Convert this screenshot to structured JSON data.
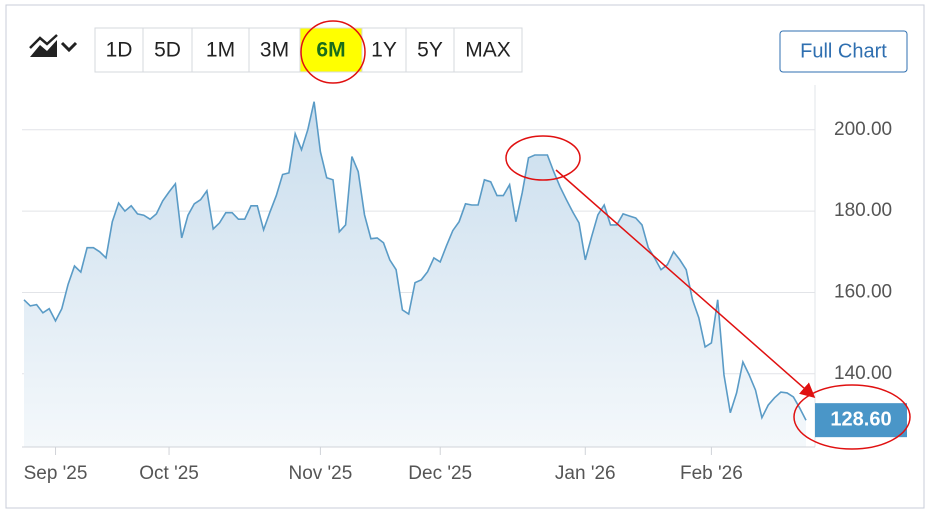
{
  "toolbar": {
    "ranges": [
      "1D",
      "5D",
      "1M",
      "3M",
      "6M",
      "1Y",
      "5Y",
      "MAX"
    ],
    "selected": 4,
    "full_chart": "Full Chart"
  },
  "chart_data": {
    "type": "line",
    "categories": [
      null,
      null,
      null,
      null,
      null,
      "Sep '25",
      null,
      null,
      null,
      null,
      null,
      null,
      null,
      null,
      null,
      null,
      null,
      null,
      null,
      null,
      null,
      null,
      null,
      "Oct '25",
      null,
      null,
      null,
      null,
      null,
      null,
      null,
      null,
      null,
      null,
      null,
      null,
      null,
      null,
      null,
      null,
      null,
      null,
      null,
      null,
      null,
      null,
      null,
      "Nov '25",
      null,
      null,
      null,
      null,
      null,
      null,
      null,
      null,
      null,
      null,
      null,
      null,
      null,
      null,
      null,
      null,
      null,
      null,
      "Dec '25",
      null,
      null,
      null,
      null,
      null,
      null,
      null,
      null,
      null,
      null,
      null,
      null,
      null,
      null,
      null,
      null,
      null,
      null,
      null,
      null,
      null,
      null,
      "Jan '26",
      null,
      null,
      null,
      null,
      null,
      null,
      null,
      null,
      null,
      null,
      null,
      null,
      null,
      null,
      null,
      null,
      null,
      null,
      null,
      "Feb '26",
      null,
      null,
      null,
      null,
      null,
      null,
      null,
      null,
      null,
      null,
      null,
      null,
      null,
      null,
      null
    ],
    "values": [
      158.2,
      156.7,
      157,
      155,
      156,
      153,
      156,
      162,
      166.5,
      165,
      171,
      171,
      170,
      168.5,
      177.4,
      182,
      180,
      181.3,
      179.3,
      179,
      178,
      179.3,
      182.5,
      184.7,
      186.7,
      173.4,
      179,
      181.8,
      182.8,
      185,
      175.6,
      177.1,
      179.6,
      179.6,
      178,
      178,
      181.3,
      181.3,
      175.4,
      179.8,
      183.8,
      189,
      189.4,
      199,
      195.1,
      200,
      206.9,
      194.6,
      188.2,
      187.7,
      174.9,
      176.6,
      193.4,
      189.7,
      179.1,
      173.2,
      173.4,
      172.2,
      168,
      165.6,
      155.7,
      154.7,
      162.4,
      163.1,
      165.1,
      168.5,
      167.5,
      171.5,
      175.2,
      177.4,
      181.8,
      181.5,
      181.5,
      187.7,
      187.2,
      183.8,
      183.8,
      186.5,
      177.4,
      184.5,
      193.1,
      193.8,
      193.8,
      193.8,
      189.7,
      186,
      182.8,
      179.8,
      177.1,
      168,
      173.7,
      179.1,
      181.5,
      176.6,
      176.6,
      179.3,
      178.8,
      178.3,
      176.6,
      171,
      168.5,
      165.6,
      166.8,
      170,
      168,
      165.6,
      158.2,
      153.8,
      146.6,
      147.6,
      158.2,
      139.7,
      130.4,
      135.3,
      142.9,
      139.7,
      136,
      129.2,
      132.3,
      134.1,
      135.5,
      135.3,
      134.3,
      131.6,
      128.6
    ],
    "value_labels": [
      null,
      null,
      null,
      null,
      null,
      null,
      null,
      null,
      null,
      null,
      null,
      null,
      null,
      null,
      null,
      null,
      null,
      null,
      null,
      null,
      null,
      null,
      null,
      null,
      null,
      null,
      null,
      null,
      null,
      null,
      null,
      null,
      null,
      null,
      null,
      null,
      null,
      null,
      null,
      null,
      null,
      null,
      null,
      null,
      null,
      null,
      null,
      null,
      null,
      null,
      null,
      null,
      null,
      null,
      null,
      null,
      null,
      null,
      null,
      null,
      null,
      null,
      null,
      null,
      null,
      null,
      null,
      null,
      null,
      null,
      null,
      null,
      null,
      null,
      null,
      null,
      null,
      null,
      null,
      null,
      null,
      null,
      null,
      null,
      null,
      null,
      null,
      null,
      null,
      null,
      null,
      null,
      null,
      null,
      null,
      null,
      null,
      null,
      null,
      null,
      null,
      null,
      null,
      null,
      null,
      null,
      null,
      null,
      null,
      null,
      null,
      null,
      null,
      null,
      null,
      null,
      null,
      null,
      null,
      null,
      null,
      null,
      null,
      null,
      "128.60"
    ],
    "color": "#5a9bc6",
    "ylim": [
      122,
      211
    ],
    "yticks": [
      {
        "value": 140,
        "label": "140.00"
      },
      {
        "value": 160,
        "label": "160.00"
      },
      {
        "value": 180,
        "label": "180.00"
      },
      {
        "value": 200,
        "label": "200.00"
      }
    ],
    "grid": true
  }
}
